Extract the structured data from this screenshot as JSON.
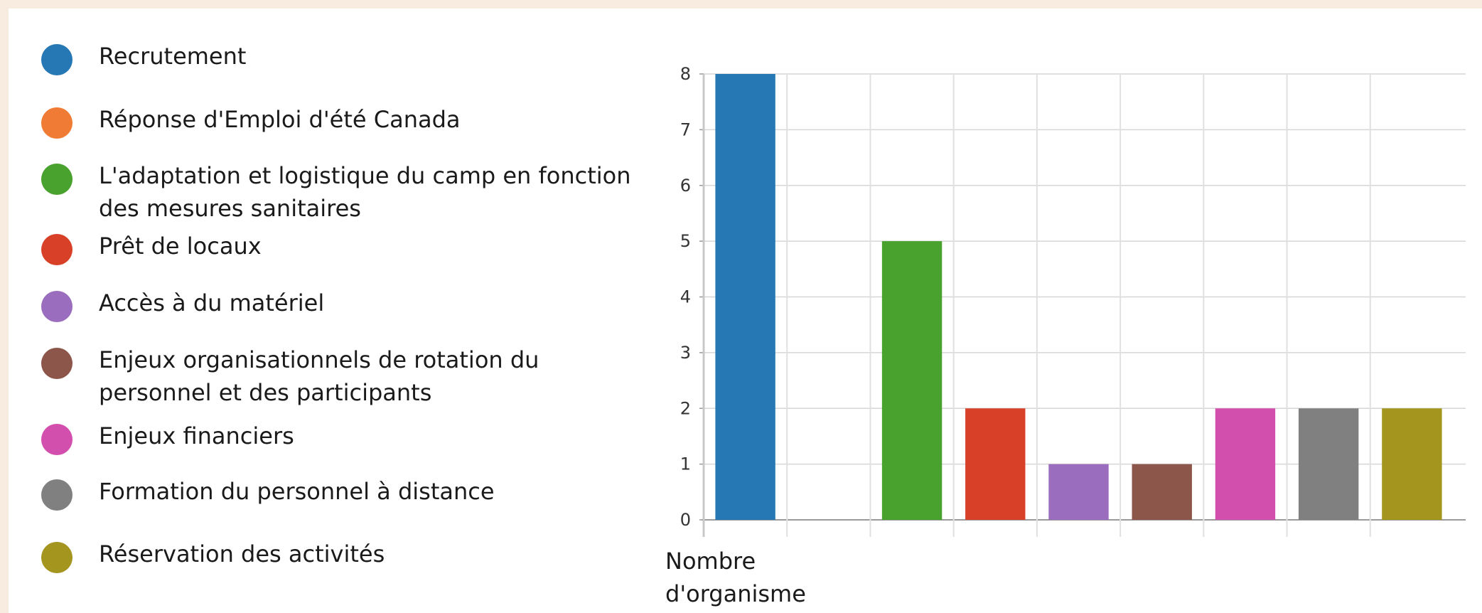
{
  "chart_data": {
    "type": "bar",
    "categories": [
      "Recrutement",
      "Réponse d'Emploi d'été Canada",
      "L'adaptation et logistique du camp en fonction des mesures sanitaires",
      "Prêt de locaux",
      "Accès à du matériel",
      "Enjeux organisationnels de rotation du personnel et des participants",
      "Enjeux financiers",
      "Formation du personnel à distance",
      "Réservation des activités"
    ],
    "values": [
      8,
      0,
      5,
      2,
      1,
      1,
      2,
      2,
      2
    ],
    "colors": [
      "#2678b4",
      "#f07b35",
      "#49a22e",
      "#d84128",
      "#9a6dbe",
      "#8d564b",
      "#d34fae",
      "#808080",
      "#a4951f"
    ],
    "legend_lines": [
      [
        "Recrutement"
      ],
      [
        "Réponse d'Emploi d'été Canada"
      ],
      [
        "L'adaptation et logistique du camp en fonction",
        "des mesures sanitaires"
      ],
      [
        "Prêt de locaux"
      ],
      [
        "Accès à du matériel"
      ],
      [
        "Enjeux organisationnels de rotation du",
        "personnel et des participants"
      ],
      [
        "Enjeux financiers"
      ],
      [
        "Formation du personnel à distance"
      ],
      [
        "Réservation des activités"
      ]
    ],
    "xlabel_lines": [
      "Nombre",
      "d'organisme"
    ],
    "ylim": [
      0,
      8
    ],
    "yticks": [
      "0",
      "1",
      "2",
      "3",
      "4",
      "5",
      "6",
      "7",
      "8"
    ],
    "grid": true,
    "legend_position": "left"
  }
}
